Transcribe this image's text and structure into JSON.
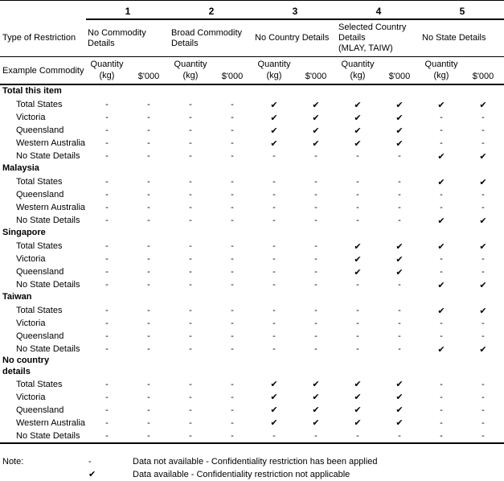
{
  "legend": {
    "check": "✔",
    "dash": "-"
  },
  "table": {
    "corner": {
      "type_of_restriction": "Type of Restriction",
      "example_commodity": "Example Commodity"
    },
    "column_groups": [
      {
        "number": "1",
        "restriction": "No Commodity Details"
      },
      {
        "number": "2",
        "restriction": "Broad Commodity Details"
      },
      {
        "number": "3",
        "restriction": "No Country Details"
      },
      {
        "number": "4",
        "restriction": "Selected Country Details\n(MLAY, TAIW)"
      },
      {
        "number": "5",
        "restriction": "No State Details"
      }
    ],
    "measure_headers": {
      "quantity": "Quantity\n(kg)",
      "value": "$'000"
    },
    "sections": [
      {
        "title": "Total this item",
        "rows": [
          {
            "label": "Total States",
            "cells": [
              "-",
              "-",
              "-",
              "-",
              "✔",
              "✔",
              "✔",
              "✔",
              "✔",
              "✔"
            ]
          },
          {
            "label": "Victoria",
            "cells": [
              "-",
              "-",
              "-",
              "-",
              "✔",
              "✔",
              "✔",
              "✔",
              "-",
              "-"
            ]
          },
          {
            "label": "Queensland",
            "cells": [
              "-",
              "-",
              "-",
              "-",
              "✔",
              "✔",
              "✔",
              "✔",
              "-",
              "-"
            ]
          },
          {
            "label": "Western Australia",
            "cells": [
              "-",
              "-",
              "-",
              "-",
              "✔",
              "✔",
              "✔",
              "✔",
              "-",
              "-"
            ]
          },
          {
            "label": "No State Details",
            "cells": [
              "-",
              "-",
              "-",
              "-",
              "-",
              "-",
              "-",
              "-",
              "✔",
              "✔"
            ]
          }
        ]
      },
      {
        "title": "Malaysia",
        "rows": [
          {
            "label": "Total States",
            "cells": [
              "-",
              "-",
              "-",
              "-",
              "-",
              "-",
              "-",
              "-",
              "✔",
              "✔"
            ]
          },
          {
            "label": "Queensland",
            "cells": [
              "-",
              "-",
              "-",
              "-",
              "-",
              "-",
              "-",
              "-",
              "-",
              "-"
            ]
          },
          {
            "label": "Western Australia",
            "cells": [
              "-",
              "-",
              "-",
              "-",
              "-",
              "-",
              "-",
              "-",
              "-",
              "-"
            ]
          },
          {
            "label": "No State Details",
            "cells": [
              "-",
              "-",
              "-",
              "-",
              "-",
              "-",
              "-",
              "-",
              "✔",
              "✔"
            ]
          }
        ]
      },
      {
        "title": "Singapore",
        "rows": [
          {
            "label": "Total States",
            "cells": [
              "-",
              "-",
              "-",
              "-",
              "-",
              "-",
              "✔",
              "✔",
              "✔",
              "✔"
            ]
          },
          {
            "label": "Victoria",
            "cells": [
              "-",
              "-",
              "-",
              "-",
              "-",
              "-",
              "✔",
              "✔",
              "-",
              "-"
            ]
          },
          {
            "label": "Queensland",
            "cells": [
              "-",
              "-",
              "-",
              "-",
              "-",
              "-",
              "✔",
              "✔",
              "-",
              "-"
            ]
          },
          {
            "label": "No State Details",
            "cells": [
              "-",
              "-",
              "-",
              "-",
              "-",
              "-",
              "-",
              "-",
              "✔",
              "✔"
            ]
          }
        ]
      },
      {
        "title": "Taiwan",
        "rows": [
          {
            "label": "Total States",
            "cells": [
              "-",
              "-",
              "-",
              "-",
              "-",
              "-",
              "-",
              "-",
              "✔",
              "✔"
            ]
          },
          {
            "label": "Victoria",
            "cells": [
              "-",
              "-",
              "-",
              "-",
              "-",
              "-",
              "-",
              "-",
              "-",
              "-"
            ]
          },
          {
            "label": "Queensland",
            "cells": [
              "-",
              "-",
              "-",
              "-",
              "-",
              "-",
              "-",
              "-",
              "-",
              "-"
            ]
          },
          {
            "label": "No State Details",
            "cells": [
              "-",
              "-",
              "-",
              "-",
              "-",
              "-",
              "-",
              "-",
              "✔",
              "✔"
            ]
          }
        ]
      },
      {
        "title": "No country\ndetails",
        "rows": [
          {
            "label": "Total States",
            "cells": [
              "-",
              "-",
              "-",
              "-",
              "✔",
              "✔",
              "✔",
              "✔",
              "-",
              "-"
            ]
          },
          {
            "label": "Victoria",
            "cells": [
              "-",
              "-",
              "-",
              "-",
              "✔",
              "✔",
              "✔",
              "✔",
              "-",
              "-"
            ]
          },
          {
            "label": "Queensland",
            "cells": [
              "-",
              "-",
              "-",
              "-",
              "✔",
              "✔",
              "✔",
              "✔",
              "-",
              "-"
            ]
          },
          {
            "label": "Western Australia",
            "cells": [
              "-",
              "-",
              "-",
              "-",
              "✔",
              "✔",
              "✔",
              "✔",
              "-",
              "-"
            ]
          },
          {
            "label": "No State Details",
            "cells": [
              "-",
              "-",
              "-",
              "-",
              "-",
              "-",
              "-",
              "-",
              "-",
              "-"
            ]
          }
        ]
      }
    ]
  },
  "note": {
    "label": "Note:",
    "items": [
      {
        "symbol": "-",
        "text": "Data not available - Confidentiality restriction has been applied"
      },
      {
        "symbol": "✔",
        "text": "Data available - Confidentiality restriction not applicable"
      }
    ]
  }
}
